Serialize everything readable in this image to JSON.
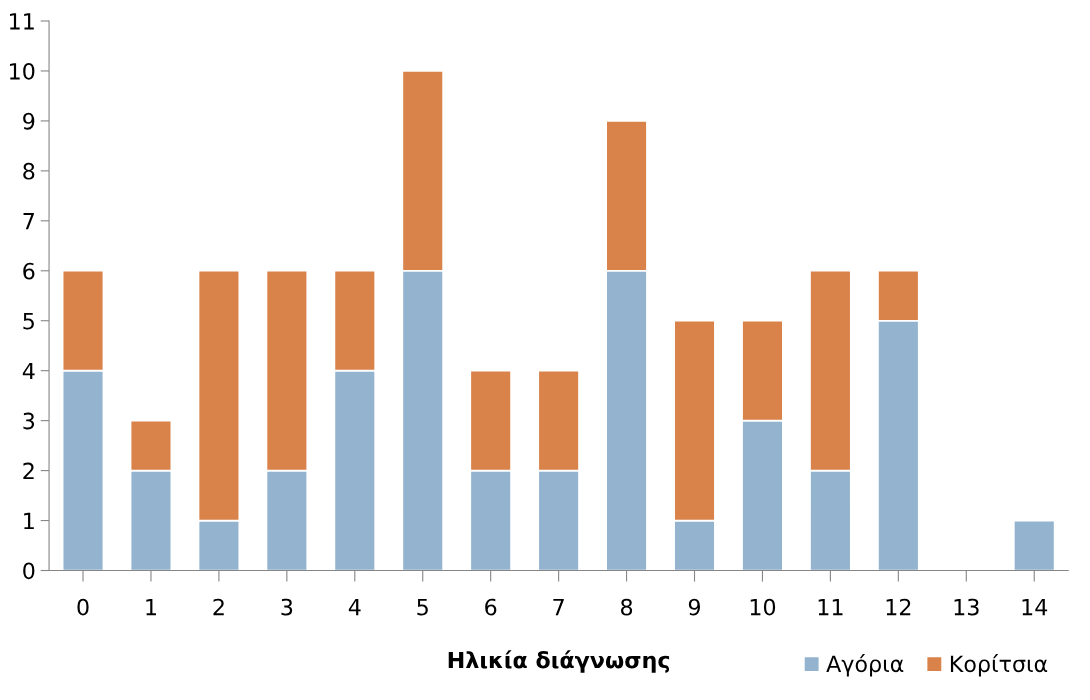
{
  "chart_data": {
    "type": "bar",
    "stacked": true,
    "xlabel": "Ηλικία διάγνωσης",
    "categories": [
      "0",
      "1",
      "2",
      "3",
      "4",
      "5",
      "6",
      "7",
      "8",
      "9",
      "10",
      "11",
      "12",
      "13",
      "14"
    ],
    "series": [
      {
        "name": "Αγόρια",
        "color": "#93b3cf",
        "values": [
          4,
          2,
          1,
          2,
          4,
          6,
          2,
          2,
          6,
          1,
          3,
          2,
          5,
          null,
          1
        ]
      },
      {
        "name": "Κορίτσια",
        "color": "#d9824a",
        "values": [
          2,
          1,
          5,
          4,
          2,
          4,
          2,
          2,
          3,
          4,
          2,
          4,
          1,
          null,
          null
        ]
      }
    ],
    "ylim": [
      0,
      11
    ],
    "yticks": [
      0,
      1,
      2,
      3,
      4,
      5,
      6,
      7,
      8,
      9,
      10,
      11
    ],
    "grid": false,
    "legend": "bottom right"
  }
}
